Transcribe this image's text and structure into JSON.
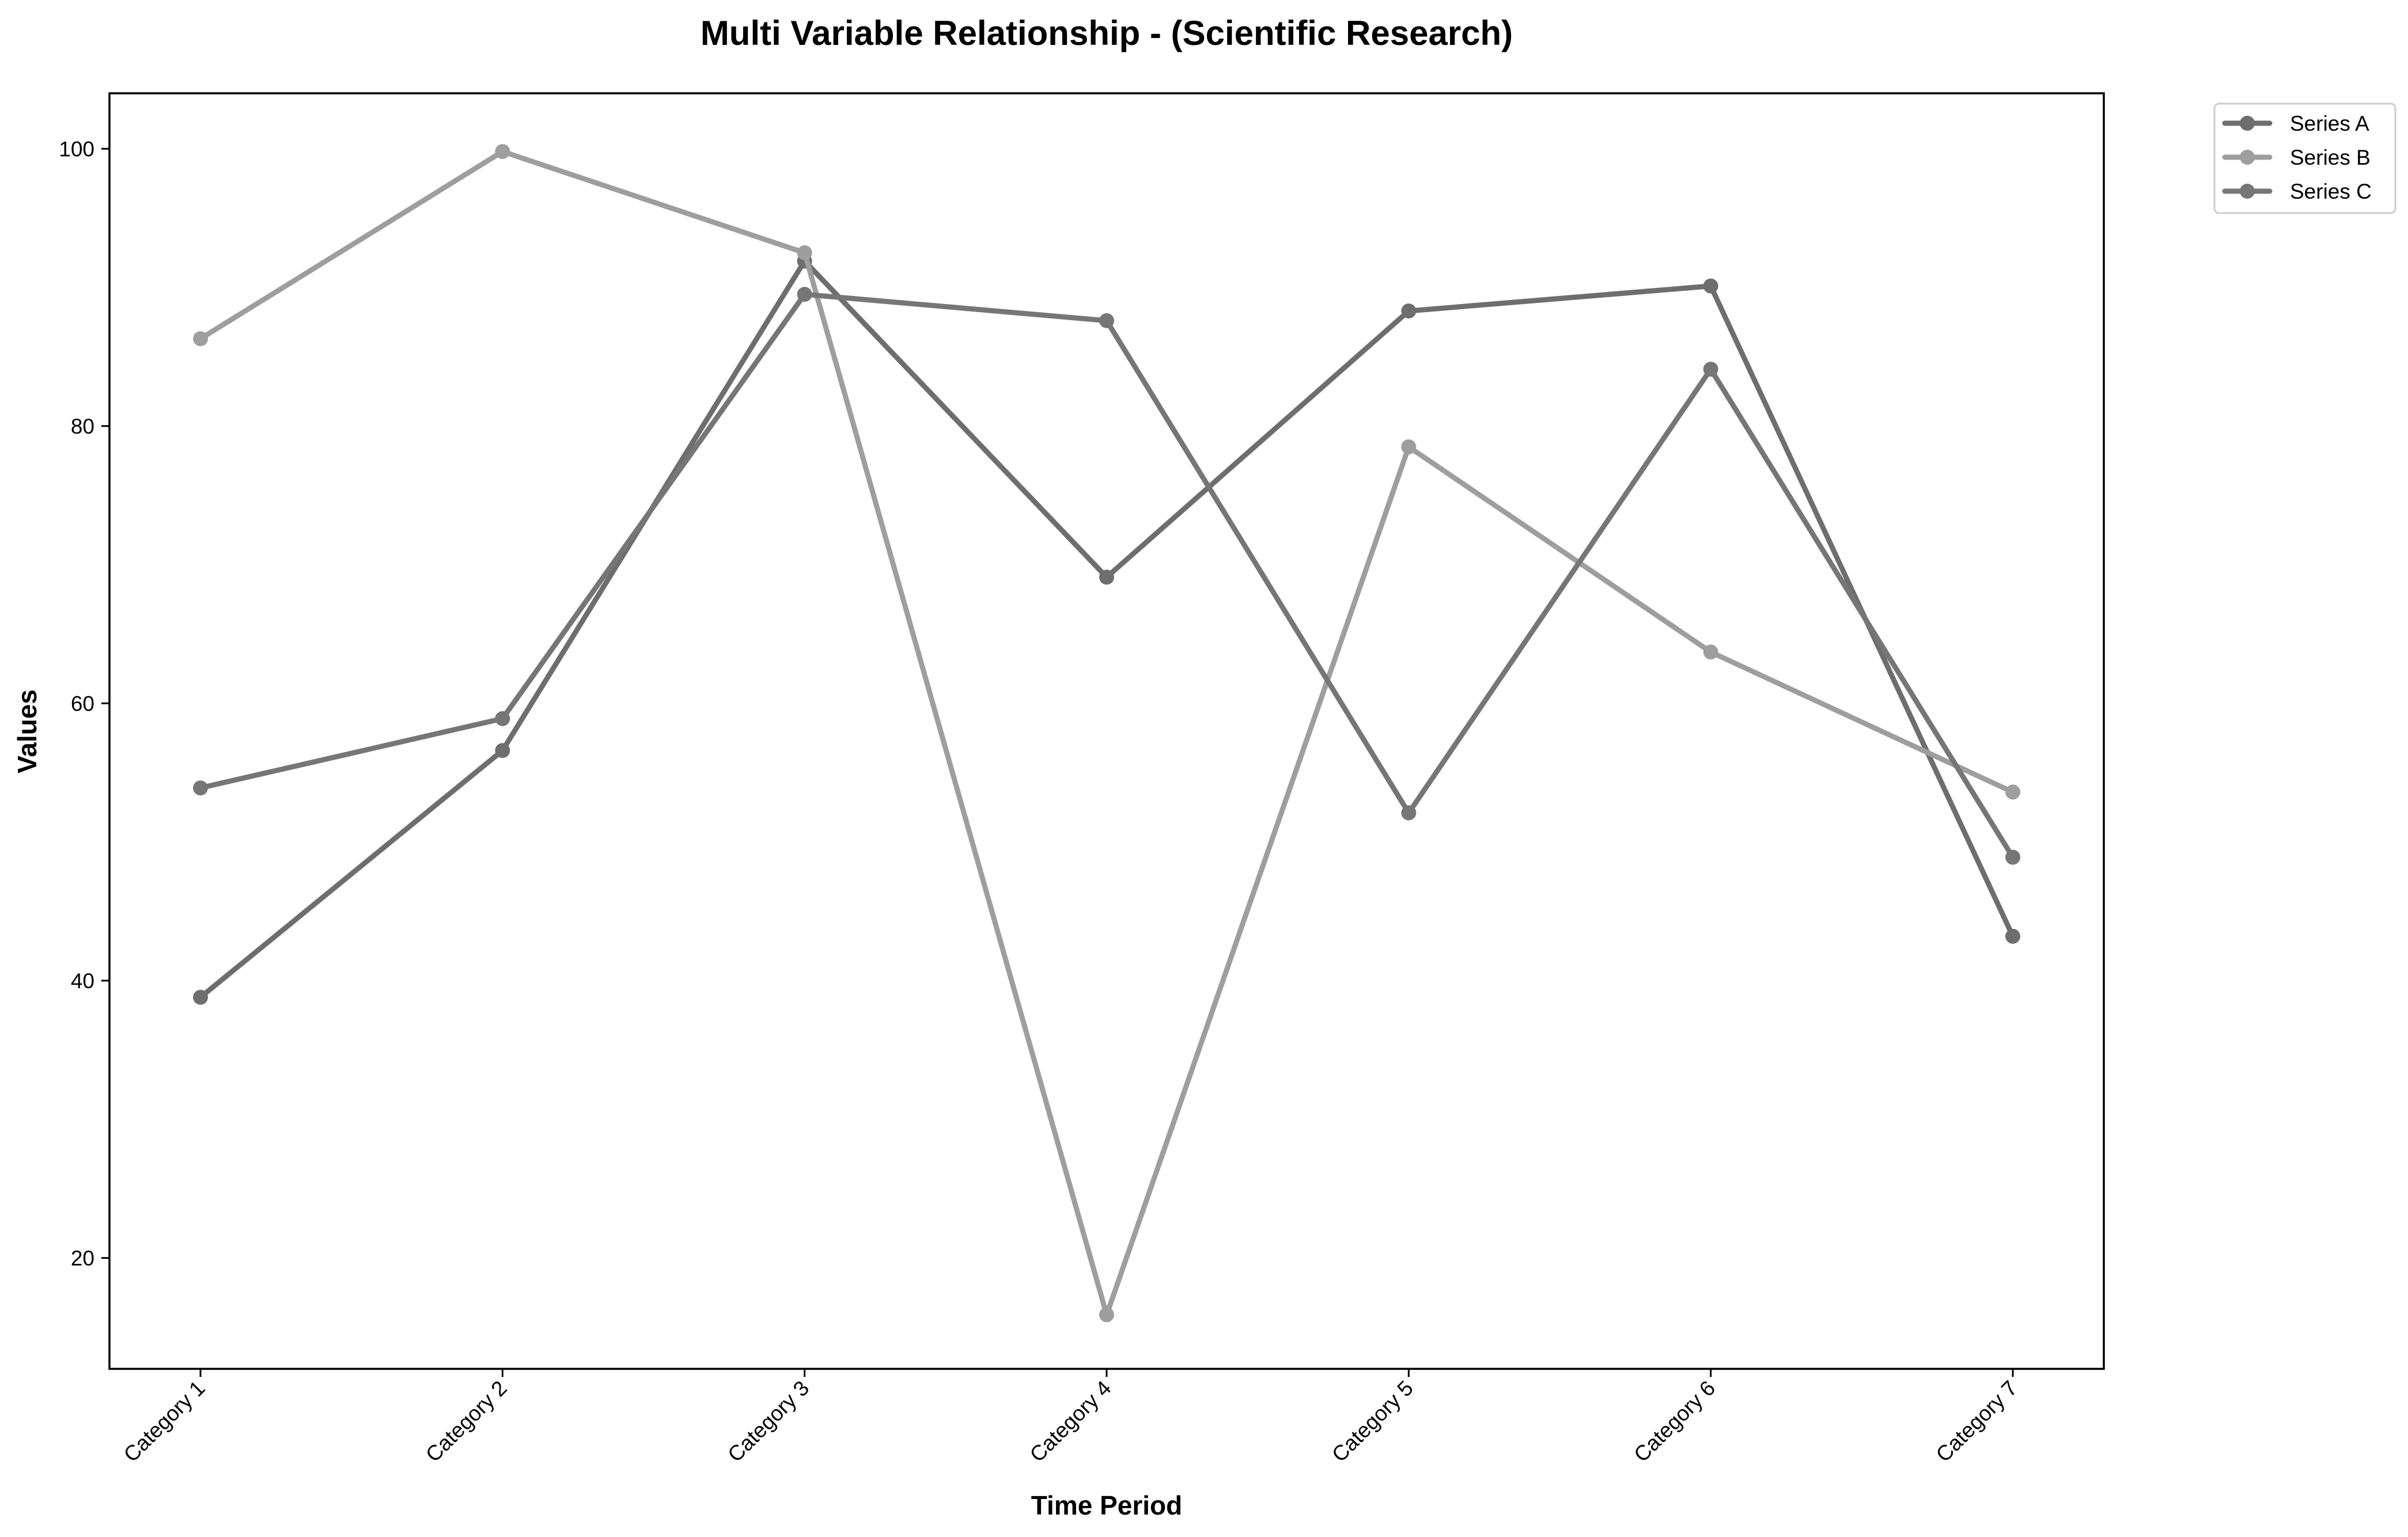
{
  "chart_data": {
    "type": "line",
    "title": "Multi Variable Relationship - (Scientific Research)",
    "xlabel": "Time Period",
    "ylabel": "Values",
    "categories": [
      "Category 1",
      "Category 2",
      "Category 3",
      "Category 4",
      "Category 5",
      "Category 6",
      "Category 7"
    ],
    "ylim": [
      12,
      104
    ],
    "yticks": [
      20,
      40,
      60,
      80,
      100
    ],
    "grid": false,
    "legend_position": "outside top-right",
    "series": [
      {
        "name": "Series A",
        "color": "#6e6e6e",
        "values": [
          38.8,
          56.6,
          91.9,
          69.1,
          88.3,
          90.1,
          43.2
        ]
      },
      {
        "name": "Series B",
        "color": "#9e9e9e",
        "values": [
          86.3,
          99.8,
          92.5,
          15.9,
          78.5,
          63.7,
          53.6
        ]
      },
      {
        "name": "Series C",
        "color": "#767676",
        "values": [
          53.9,
          58.9,
          89.5,
          87.6,
          52.1,
          84.1,
          48.9
        ]
      }
    ]
  }
}
